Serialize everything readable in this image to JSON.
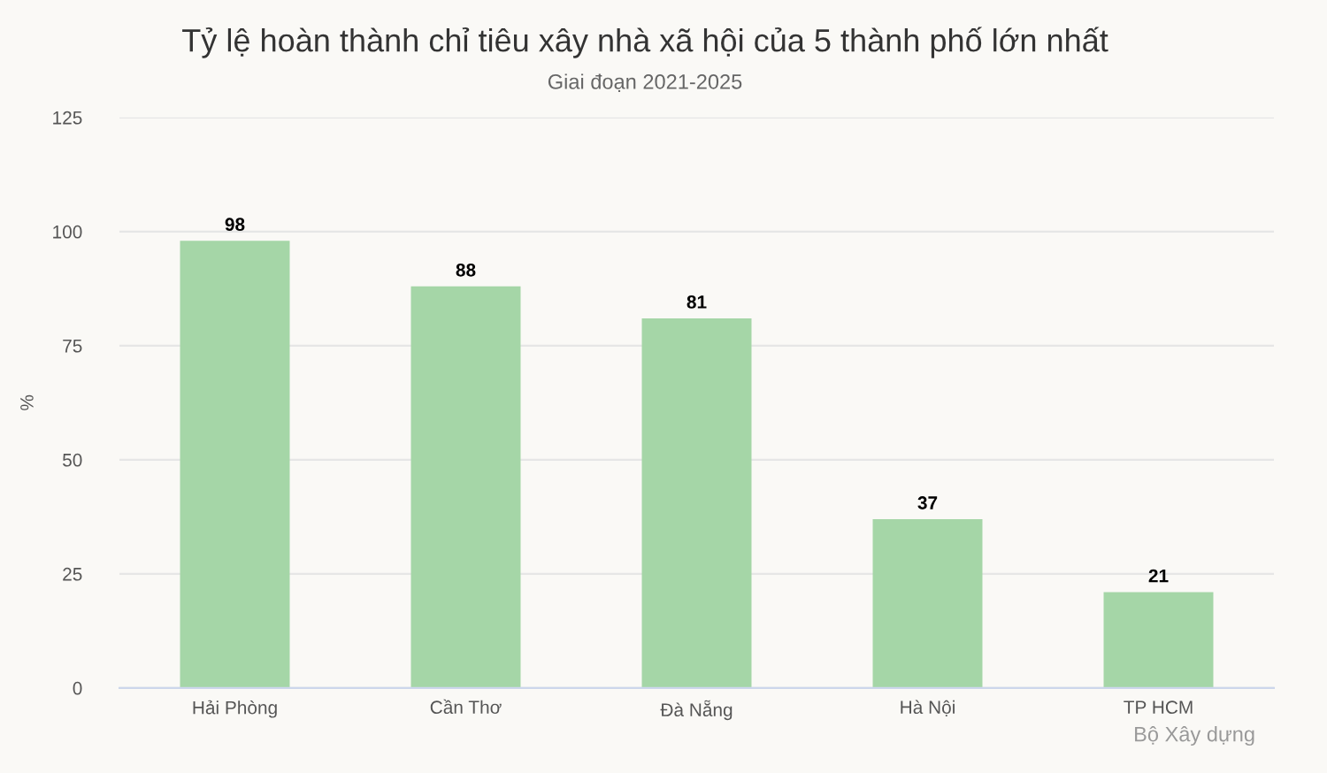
{
  "chart_data": {
    "type": "bar",
    "title": "Tỷ lệ hoàn thành chỉ tiêu xây nhà xã hội của 5 thành phố lớn nhất",
    "subtitle": "Giai đoạn 2021-2025",
    "ylabel": "%",
    "categories": [
      "Hải Phòng",
      "Cần Thơ",
      "Đà Nẵng",
      "Hà Nội",
      "TP HCM"
    ],
    "values": [
      98,
      88,
      81,
      37,
      21
    ],
    "color": "#a5d6a7",
    "ylim": [
      0,
      125
    ],
    "yticks": [
      0,
      25,
      50,
      75,
      100,
      125
    ],
    "grid": "y",
    "data_labels": true,
    "annotations": [
      "Bộ Xây dựng"
    ]
  }
}
